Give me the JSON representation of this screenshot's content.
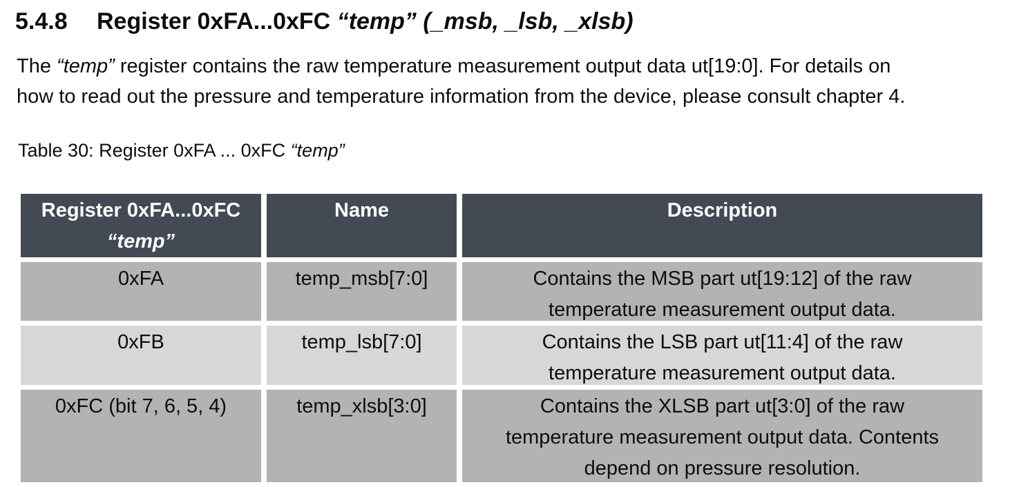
{
  "page": {
    "heading": {
      "number": "5.4.8",
      "title_plain": "Register 0xFA...0xFC ",
      "title_italic": "“temp”",
      "title_suffix_italic": " (_msb, _lsb, _xlsb)"
    },
    "paragraph": {
      "line1_part1": "The ",
      "line1_italic": "“temp”",
      "line1_part2": " register contains the raw temperature measurement output data ut[19:0]. For details on",
      "line2": "how to read out the pressure and temperature information from the device, please consult chapter 4."
    },
    "table_caption": {
      "text": "Table 30: Register 0xFA ... 0xFC ",
      "italic": "“temp”"
    }
  },
  "table": {
    "headers": {
      "register_line1": "Register 0xFA...0xFC",
      "register_line2": "“temp”",
      "name": "Name",
      "description": "Description"
    },
    "rows": [
      {
        "register": "0xFA",
        "name": "temp_msb[7:0]",
        "description_lines": [
          "Contains the MSB part ut[19:12] of the raw",
          "temperature measurement output data."
        ]
      },
      {
        "register": "0xFB",
        "name": "temp_lsb[7:0]",
        "description_lines": [
          "Contains the LSB part ut[11:4] of the raw",
          "temperature measurement output data."
        ]
      },
      {
        "register": "0xFC (bit 7, 6, 5, 4)",
        "name": "temp_xlsb[3:0]",
        "description_lines": [
          "Contains the XLSB part ut[3:0] of the raw",
          "temperature measurement output data. Contents",
          "depend on pressure resolution."
        ]
      }
    ]
  },
  "colors": {
    "header_bg": "#434a54",
    "header_text": "#ffffff",
    "row_dark": "#b3b3b5",
    "row_light": "#d7d7d9",
    "body_text": "#0d0d0d",
    "page_bg": "#ffffff"
  }
}
